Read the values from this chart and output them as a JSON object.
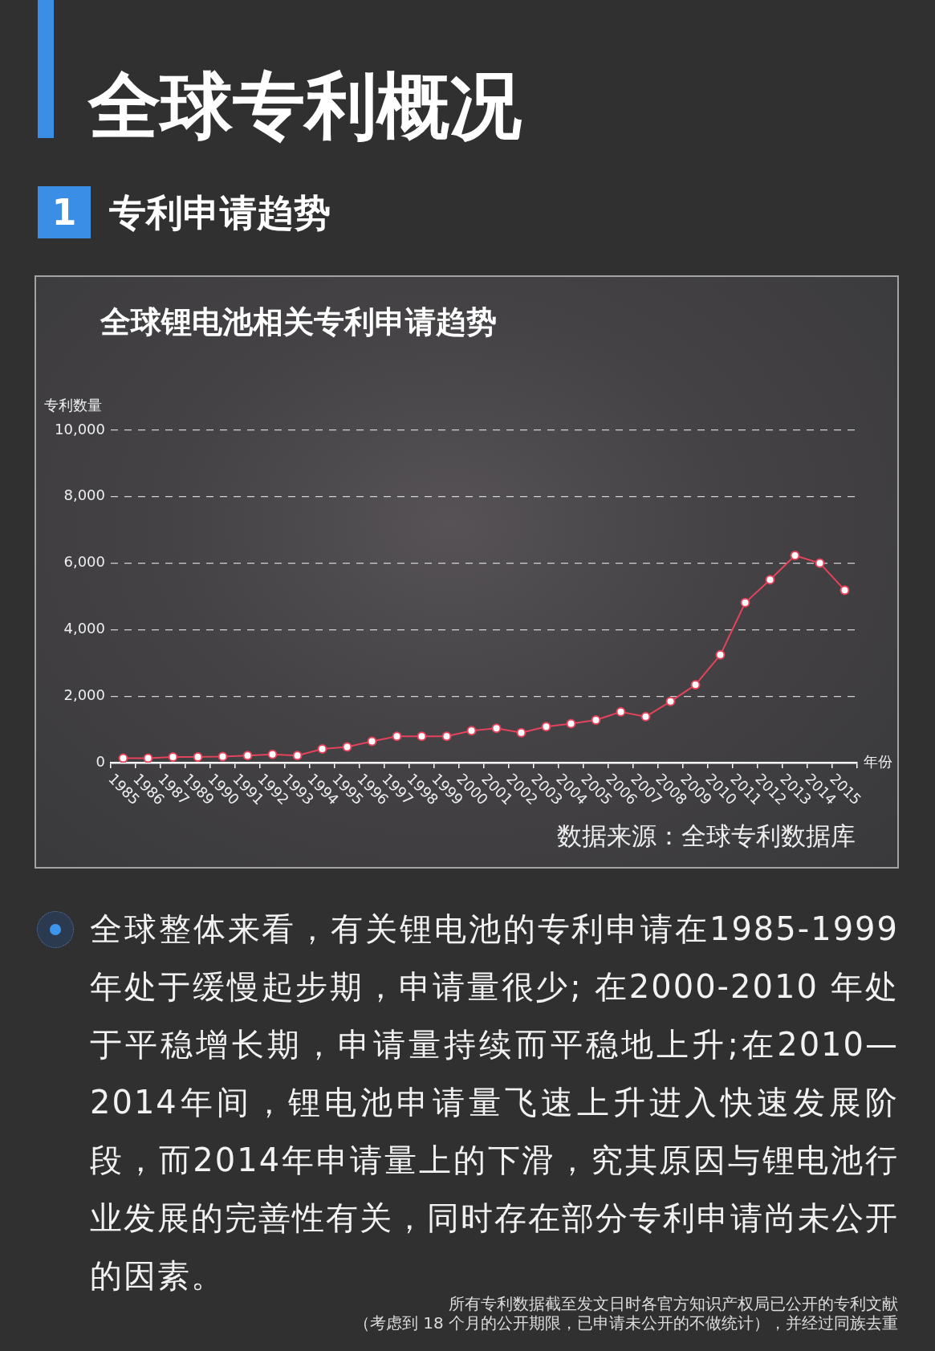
{
  "chart_data": {
    "type": "line",
    "title": "全球锂电池相关专利申请趋势",
    "xlabel": "年份",
    "ylabel": "专利数量",
    "categories": [
      "1985",
      "1986",
      "1987",
      "1989",
      "1990",
      "1991",
      "1992",
      "1993",
      "1994",
      "1995",
      "1996",
      "1997",
      "1998",
      "1999",
      "2000",
      "2001",
      "2002",
      "2003",
      "2004",
      "2005",
      "2006",
      "2007",
      "2008",
      "2009",
      "2010",
      "2011",
      "2012",
      "2013",
      "2014",
      "2015"
    ],
    "values": [
      130,
      130,
      170,
      170,
      180,
      210,
      250,
      210,
      410,
      470,
      640,
      790,
      790,
      790,
      960,
      1030,
      900,
      1080,
      1170,
      1280,
      1530,
      1380,
      1840,
      2340,
      3240,
      4810,
      5500,
      6230,
      6000,
      5190
    ],
    "color": "#e5435b",
    "ylim": [
      0,
      10000
    ],
    "yticks": [
      0,
      {
        "value": 2000,
        "label": "2,000"
      },
      {
        "value": 4000,
        "label": "4,000"
      },
      {
        "value": 6000,
        "label": "6,000"
      },
      {
        "value": 8000,
        "label": "8,000"
      },
      {
        "value": 10000,
        "label": "10,000"
      }
    ],
    "grid": "y",
    "marker": "circle",
    "annotations": [
      "全球专利概况",
      "1",
      "专利申请趋势",
      "数据来源：全球专利数据库",
      "全球整体来看，有关锂电池的专利申请在1985-1999年处于缓慢起步期，申请量很少; 在2000-2010 年处于平稳增长期，申请量持续而平稳地上升;在2010—2014年间，锂电池申请量飞速上升进入快速发展阶段，而2014年申请量上的下滑，究其原因与锂电池行业发展的完善性有关，同时存在部分专利申请尚未公开的因素。",
      "所有专利数据截至发文日时各官方知识产权局已公开的专利文献",
      "（考虑到 18 个月的公开期限，已申请未公开的不做统计），并经过同族去重"
    ]
  }
}
